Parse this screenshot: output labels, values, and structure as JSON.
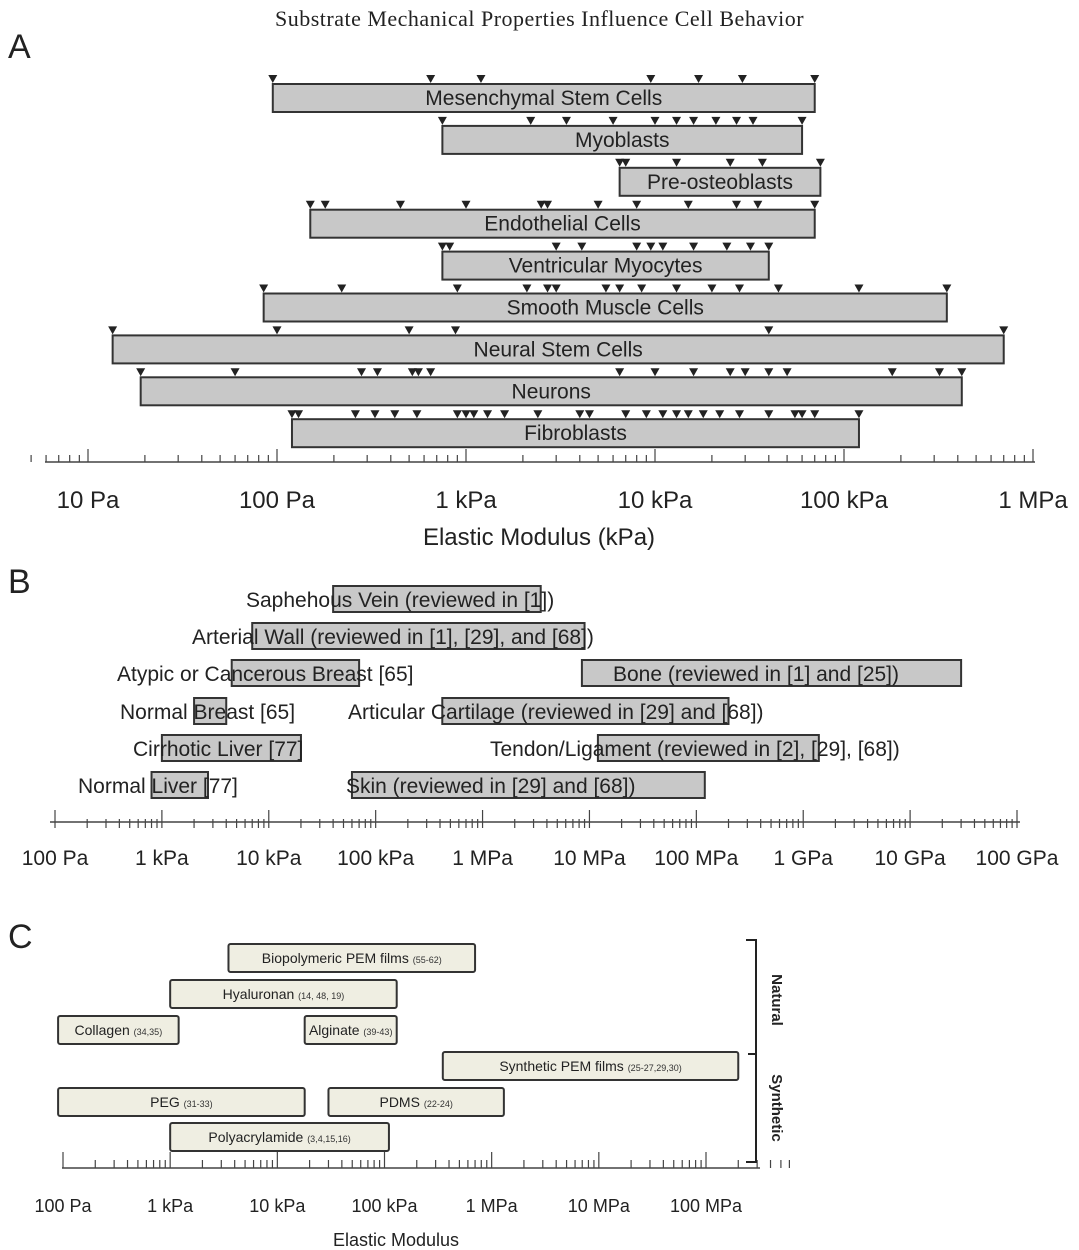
{
  "figure_title": "Substrate Mechanical Properties Influence Cell Behavior",
  "chart_data": [
    {
      "panel": "A",
      "type": "bar",
      "orientation": "horizontal-range",
      "xlabel": "Elastic Modulus (kPa)",
      "x_scale": "log",
      "x_ticks": [
        {
          "value": 0.01,
          "label": "10 Pa"
        },
        {
          "value": 0.1,
          "label": "100 Pa"
        },
        {
          "value": 1,
          "label": "1 kPa"
        },
        {
          "value": 10,
          "label": "10 kPa"
        },
        {
          "value": 100,
          "label": "100 kPa"
        },
        {
          "value": 1000,
          "label": "1 MPa"
        }
      ],
      "xlim": [
        0.005,
        1000
      ],
      "ranges": [
        {
          "label": "Mesenchymal Stem Cells",
          "min": 0.095,
          "max": 70,
          "markers": [
            0.095,
            0.65,
            1.2,
            9.5,
            17,
            29,
            70
          ]
        },
        {
          "label": "Myoblasts",
          "min": 0.75,
          "max": 60,
          "markers": [
            0.75,
            2.2,
            3.4,
            6,
            10,
            13,
            16,
            21,
            27,
            33,
            60
          ]
        },
        {
          "label": "Pre-osteoblasts",
          "min": 6.5,
          "max": 75,
          "markers": [
            6.5,
            7,
            13,
            25,
            37,
            75
          ]
        },
        {
          "label": "Endothelial Cells",
          "min": 0.15,
          "max": 70,
          "markers": [
            0.15,
            0.18,
            0.45,
            1,
            2.5,
            2.7,
            5,
            8,
            15,
            27,
            35,
            70
          ]
        },
        {
          "label": "Ventricular Myocytes",
          "min": 0.75,
          "max": 40,
          "markers": [
            0.75,
            0.82,
            3,
            4.1,
            8,
            9.5,
            11,
            16,
            24,
            32,
            40
          ]
        },
        {
          "label": "Smooth Muscle Cells",
          "min": 0.085,
          "max": 350,
          "markers": [
            0.085,
            0.22,
            0.9,
            2.1,
            2.7,
            3,
            5.5,
            6.5,
            8.5,
            13,
            20,
            28,
            45,
            120,
            350
          ]
        },
        {
          "label": "Neural Stem Cells",
          "min": 0.0135,
          "max": 700,
          "markers": [
            0.0135,
            0.1,
            0.5,
            0.88,
            40,
            700
          ]
        },
        {
          "label": "Neurons",
          "min": 0.019,
          "max": 420,
          "markers": [
            0.019,
            0.06,
            0.28,
            0.34,
            0.52,
            0.56,
            0.65,
            6.5,
            10,
            16,
            25,
            30,
            40,
            50,
            180,
            320,
            420
          ]
        },
        {
          "label": "Fibroblasts",
          "min": 0.12,
          "max": 120,
          "markers": [
            0.12,
            0.13,
            0.26,
            0.33,
            0.42,
            0.55,
            0.9,
            1,
            1.1,
            1.3,
            1.6,
            2.4,
            4,
            4.5,
            7,
            9,
            11,
            13,
            15,
            18,
            22,
            28,
            40,
            55,
            60,
            70,
            120
          ]
        }
      ]
    },
    {
      "panel": "B",
      "type": "bar",
      "orientation": "horizontal-range",
      "x_scale": "log",
      "x_ticks": [
        {
          "value": 100,
          "label": "100 Pa"
        },
        {
          "value": 1000,
          "label": "1 kPa"
        },
        {
          "value": 10000,
          "label": "10 kPa"
        },
        {
          "value": 100000,
          "label": "100 kPa"
        },
        {
          "value": 1000000,
          "label": "1 MPa"
        },
        {
          "value": 10000000,
          "label": "10 MPa"
        },
        {
          "value": 100000000,
          "label": "100 MPa"
        },
        {
          "value": 1000000000,
          "label": "1 GPa"
        },
        {
          "value": 10000000000,
          "label": "10 GPa"
        },
        {
          "value": 100000000000,
          "label": "100 GPa"
        }
      ],
      "xlim": [
        100,
        100000000000
      ],
      "ranges": [
        {
          "label": "Saphehous Vein (reviewed in [1])",
          "min": 40000,
          "max": 3500000
        },
        {
          "label": "Arterial Wall (reviewed in [1], [29], and [68])",
          "min": 7000,
          "max": 9000000
        },
        {
          "label": "Atypic or Cancerous Breast [65]",
          "min": 4500,
          "max": 70000
        },
        {
          "label": "Bone (reviewed in [1] and [25])",
          "min": 8500000,
          "max": 30000000000
        },
        {
          "label": "Normal Breast [65]",
          "min": 2000,
          "max": 4000
        },
        {
          "label": "Articular Cartilage (reviewed in [29] and [68])",
          "min": 420000,
          "max": 200000000
        },
        {
          "label": "Cirrhotic Liver [77]",
          "min": 1000,
          "max": 20000
        },
        {
          "label": "Tendon/Ligament (reviewed in [2], [29], [68])",
          "min": 12000000,
          "max": 1400000000
        },
        {
          "label": "Normal Liver [77]",
          "min": 800,
          "max": 2700
        },
        {
          "label": "Skin (reviewed in [29] and [68])",
          "min": 60000,
          "max": 120000000
        }
      ]
    },
    {
      "panel": "C",
      "type": "bar",
      "orientation": "horizontal-range",
      "xlabel": "Elastic Modulus",
      "x_scale": "log",
      "x_ticks": [
        {
          "value": 100,
          "label": "100 Pa"
        },
        {
          "value": 1000,
          "label": "1 kPa"
        },
        {
          "value": 10000,
          "label": "10 kPa"
        },
        {
          "value": 100000,
          "label": "100 kPa"
        },
        {
          "value": 1000000,
          "label": "1 MPa"
        },
        {
          "value": 10000000,
          "label": "10 MPa"
        },
        {
          "value": 100000000,
          "label": "100 MPa"
        }
      ],
      "xlim": [
        100,
        600000000
      ],
      "groups": [
        {
          "label": "Natural"
        },
        {
          "label": "Synthetic"
        }
      ],
      "ranges": [
        {
          "label": "Biopolymeric PEM films",
          "ref": "(55-62)",
          "group": "Natural",
          "min": 3500,
          "max": 700000
        },
        {
          "label": "Hyaluronan",
          "ref": "(14, 48, 19)",
          "group": "Natural",
          "min": 1000,
          "max": 130000
        },
        {
          "label": "Collagen",
          "ref": "(34,35)",
          "group": "Natural",
          "min": 90,
          "max": 1200
        },
        {
          "label": "Alginate",
          "ref": "(39-43)",
          "group": "Natural",
          "min": 18000,
          "max": 130000
        },
        {
          "label": "Synthetic PEM films",
          "ref": "(25-27,29,30)",
          "group": "Synthetic",
          "min": 350000,
          "max": 200000000
        },
        {
          "label": "PEG",
          "ref": "(31-33)",
          "group": "Synthetic",
          "min": 90,
          "max": 18000
        },
        {
          "label": "PDMS",
          "ref": "(22-24)",
          "group": "Synthetic",
          "min": 30000,
          "max": 1300000
        },
        {
          "label": "Polyacrylamide",
          "ref": "(3,4,15,16)",
          "group": "Synthetic",
          "min": 1000,
          "max": 110000
        }
      ]
    }
  ]
}
